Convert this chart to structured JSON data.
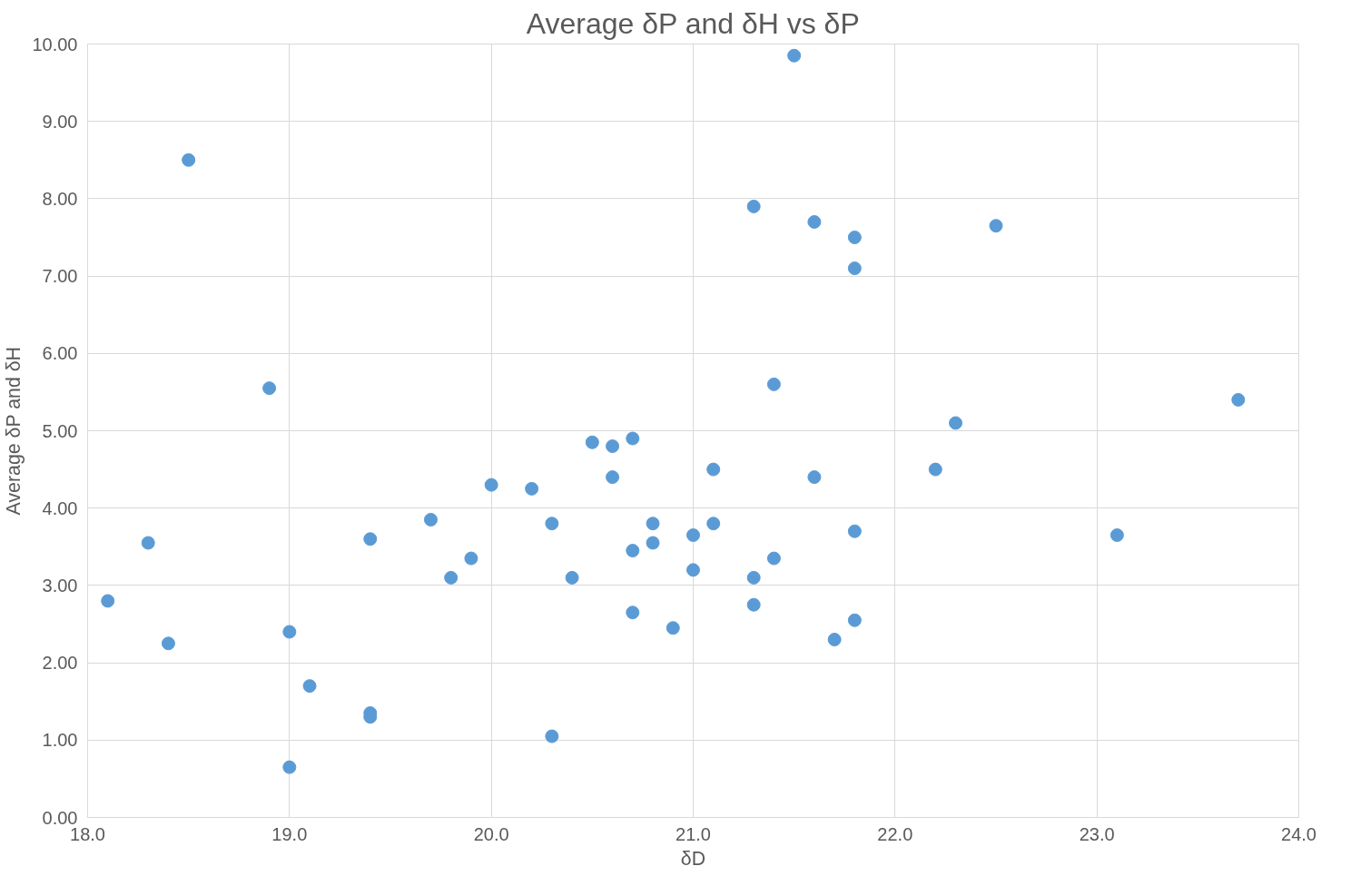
{
  "chart_data": {
    "type": "scatter",
    "title": "Average δP and δH vs δP",
    "xlabel": "δD",
    "ylabel": "Average δP and δH",
    "x": [
      18.5,
      21.5,
      21.3,
      21.6,
      21.8,
      21.8,
      22.5,
      18.9,
      21.4,
      23.7,
      22.3,
      20.5,
      20.6,
      20.7,
      21.1,
      22.2,
      20.6,
      21.6,
      20.0,
      20.2,
      19.7,
      20.3,
      20.8,
      21.1,
      21.8,
      21.0,
      23.1,
      18.3,
      19.4,
      20.8,
      20.7,
      19.9,
      21.4,
      19.8,
      20.4,
      21.3,
      21.0,
      18.1,
      21.3,
      20.7,
      21.8,
      20.9,
      19.0,
      21.7,
      18.4,
      19.1,
      19.4,
      19.4,
      20.3,
      19.0
    ],
    "series": [
      {
        "color": "#5b9bd5",
        "values": [
          8.5,
          9.85,
          7.9,
          7.7,
          7.5,
          7.1,
          7.65,
          5.55,
          5.6,
          5.4,
          5.1,
          4.85,
          4.8,
          4.9,
          4.5,
          4.5,
          4.4,
          4.4,
          4.3,
          4.25,
          3.85,
          3.8,
          3.8,
          3.8,
          3.7,
          3.65,
          3.65,
          3.55,
          3.6,
          3.55,
          3.45,
          3.35,
          3.35,
          3.1,
          3.1,
          3.1,
          3.2,
          2.8,
          2.75,
          2.65,
          2.55,
          2.45,
          2.4,
          2.3,
          2.25,
          1.7,
          1.35,
          1.3,
          1.05,
          0.65
        ]
      }
    ],
    "xlim": [
      18,
      24
    ],
    "ylim": [
      0,
      10
    ],
    "xticks": [
      {
        "value": 18,
        "label": "18.0"
      },
      {
        "value": 19,
        "label": "19.0"
      },
      {
        "value": 20,
        "label": "20.0"
      },
      {
        "value": 21,
        "label": "21.0"
      },
      {
        "value": 22,
        "label": "22.0"
      },
      {
        "value": 23,
        "label": "23.0"
      },
      {
        "value": 24,
        "label": "24.0"
      }
    ],
    "yticks": [
      {
        "value": 0,
        "label": "0.00"
      },
      {
        "value": 1,
        "label": "1.00"
      },
      {
        "value": 2,
        "label": "2.00"
      },
      {
        "value": 3,
        "label": "3.00"
      },
      {
        "value": 4,
        "label": "4.00"
      },
      {
        "value": 5,
        "label": "5.00"
      },
      {
        "value": 6,
        "label": "6.00"
      },
      {
        "value": 7,
        "label": "7.00"
      },
      {
        "value": 8,
        "label": "8.00"
      },
      {
        "value": 9,
        "label": "9.00"
      },
      {
        "value": 10,
        "label": "10.00"
      }
    ],
    "grid": true,
    "marker": "circle"
  }
}
